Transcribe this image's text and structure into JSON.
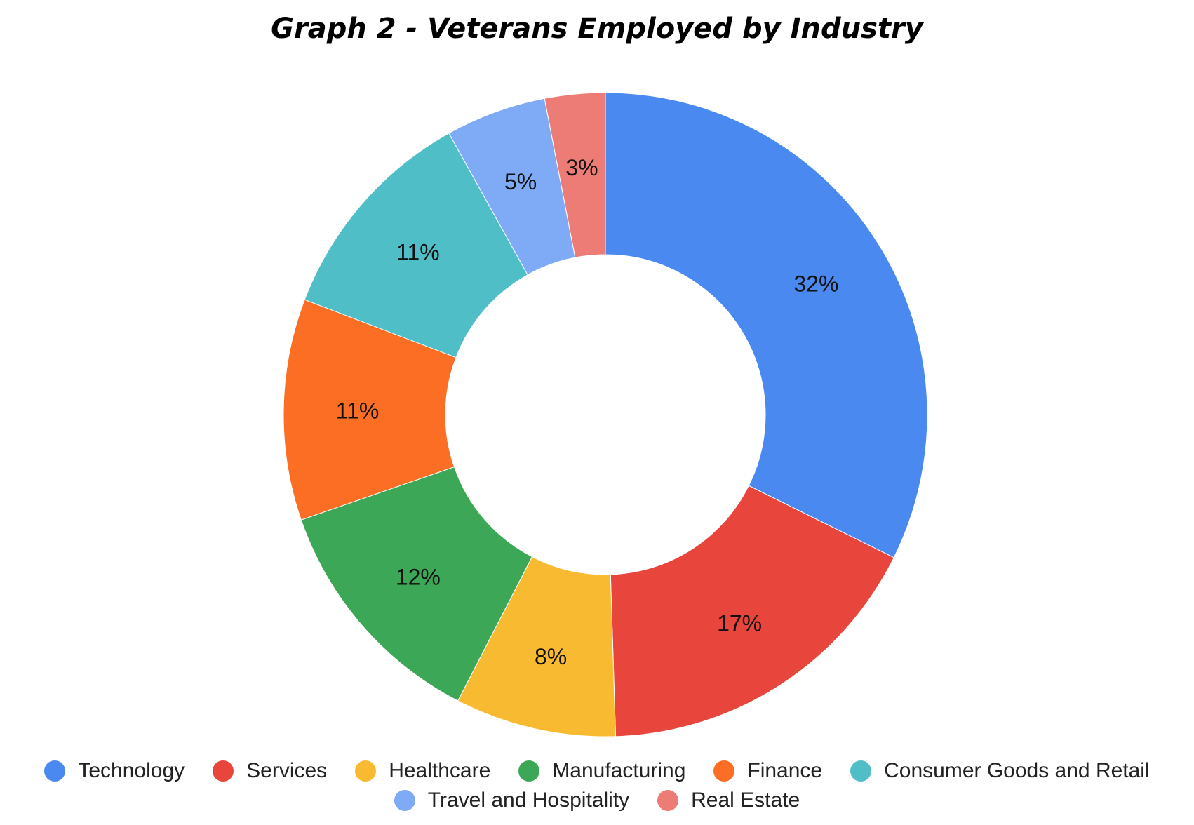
{
  "chart_data": {
    "type": "pie",
    "title": "Graph 2 - Veterans Employed by Industry",
    "donut": true,
    "legend_position": "bottom",
    "slices": [
      {
        "label": "Technology",
        "value": 32,
        "display": "32%",
        "color": "#4A89F0"
      },
      {
        "label": "Services",
        "value": 17,
        "display": "17%",
        "color": "#E8453D"
      },
      {
        "label": "Healthcare",
        "value": 8,
        "display": "8%",
        "color": "#F8BA30"
      },
      {
        "label": "Manufacturing",
        "value": 12,
        "display": "12%",
        "color": "#3CA757"
      },
      {
        "label": "Finance",
        "value": 11,
        "display": "11%",
        "color": "#FB6E24"
      },
      {
        "label": "Consumer Goods and Retail",
        "value": 11,
        "display": "11%",
        "color": "#4FBEC6"
      },
      {
        "label": "Travel and Hospitality",
        "value": 5,
        "display": "5%",
        "color": "#7FAAF5"
      },
      {
        "label": "Real Estate",
        "value": 3,
        "display": "3%",
        "color": "#EE7C76"
      }
    ]
  }
}
